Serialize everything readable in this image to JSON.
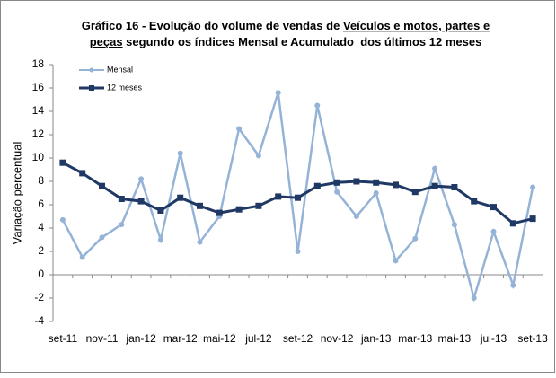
{
  "chart_data": {
    "type": "line",
    "title": [
      [
        "Gráfico 16 - Evolução do volume de vendas de ",
        "Veículos e motos, partes e"
      ],
      [
        "peças",
        " segundo os índices Mensal e Acumulado  dos últimos 12 meses"
      ]
    ],
    "y_label": "Variação percentual",
    "categories": [
      "set-11",
      null,
      "nov-11",
      null,
      "jan-12",
      null,
      "mar-12",
      null,
      "mai-12",
      null,
      "jul-12",
      null,
      "set-12",
      null,
      "nov-12",
      null,
      "jan-13",
      null,
      "mar-13",
      null,
      "mai-13",
      null,
      "jul-13",
      null,
      "set-13"
    ],
    "series": [
      {
        "name": "Mensal",
        "color": "#95b3d7",
        "marker": "circle",
        "values": [
          4.7,
          1.5,
          3.2,
          4.3,
          8.2,
          3.0,
          10.4,
          2.8,
          5.0,
          12.5,
          10.2,
          15.6,
          2.0,
          14.5,
          7.1,
          5.0,
          7.0,
          1.2,
          3.1,
          9.1,
          4.3,
          -2.0,
          3.7,
          -0.9,
          7.5
        ]
      },
      {
        "name": "12 meses",
        "color": "#1f3864",
        "marker": "square",
        "values": [
          9.6,
          8.7,
          7.6,
          6.5,
          6.3,
          5.5,
          6.6,
          5.9,
          5.3,
          5.6,
          5.9,
          6.7,
          6.6,
          7.6,
          7.9,
          8.0,
          7.9,
          7.7,
          7.1,
          7.6,
          7.5,
          6.3,
          5.8,
          4.4,
          4.8
        ]
      }
    ],
    "ylim": [
      -4,
      18
    ],
    "yticks": [
      -4,
      -2,
      0,
      2,
      4,
      6,
      8,
      10,
      12,
      14,
      16,
      18
    ],
    "grid": false,
    "legend": "top-left"
  }
}
